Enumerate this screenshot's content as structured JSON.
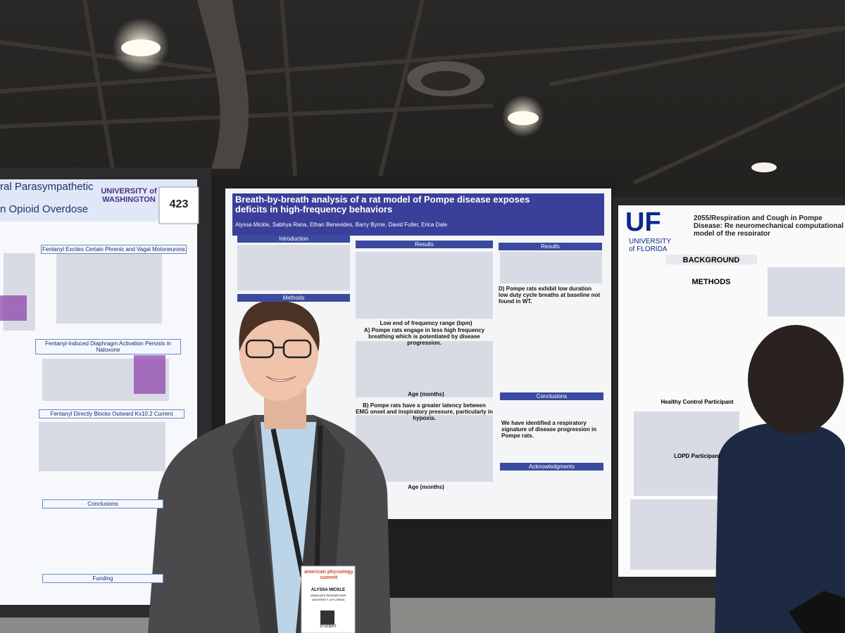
{
  "left_poster": {
    "title_lines": [
      "ral Parasympathetic",
      "n Opioid Overdose"
    ],
    "board_number": "423",
    "university": "UNIVERSITY of WASHINGTON",
    "sections": [
      "Fentanyl Excites Certain Phrenic and Vagal Motoneurons",
      "Fentanyl-Induced Diaphragm Activation Persists in Naloxone",
      "Fentanyl Directly Blocks Outward Kv10.2 Current",
      "Conclusions",
      "Funding"
    ]
  },
  "center_poster": {
    "title": "Breath-by-breath analysis of a rat model of Pompe disease exposes deficits in high-frequency behaviors",
    "authors": "Alyssa Mickle, Sabhya Rana, Ethan Benevides, Barry Byrne, David Fuller, Erica Dale",
    "sections": [
      "Introduction",
      "Methods",
      "Results",
      "Results",
      "Conclusions",
      "Acknowledgments"
    ],
    "captions": [
      "A) Pompe rats engage in less high frequency breathing which is potentiated by disease progression.",
      "B) Pompe rats have a greater latency between EMG onset and inspiratory pressure, particularly in hypoxia.",
      "D) Pompe rats exhibit low duration low duty cycle breaths at baseline not found in WT.",
      "We have identified a respiratory signature of disease progression in Pompe rats."
    ],
    "axis_labels": [
      "Low end of frequency range (bpm)",
      "Age (months)",
      "Age (months)"
    ]
  },
  "right_poster": {
    "logo": "UF",
    "logo_sub": "UNIVERSITY of FLORIDA",
    "title": "2055/Respiration and Cough in Pompe Disease: Re neuromechanical computational model of the respirator",
    "sections": [
      "BACKGROUND",
      "METHODS",
      "Healthy Control Participant",
      "LOPD Participant"
    ]
  },
  "badge": {
    "event": "american physiology summit",
    "name": "ALYSSA MICKLE",
    "role": "GRADUATE RESEARCHER",
    "affiliation": "UNIVERSITY of FLORIDA",
    "type": "STUDENT"
  }
}
